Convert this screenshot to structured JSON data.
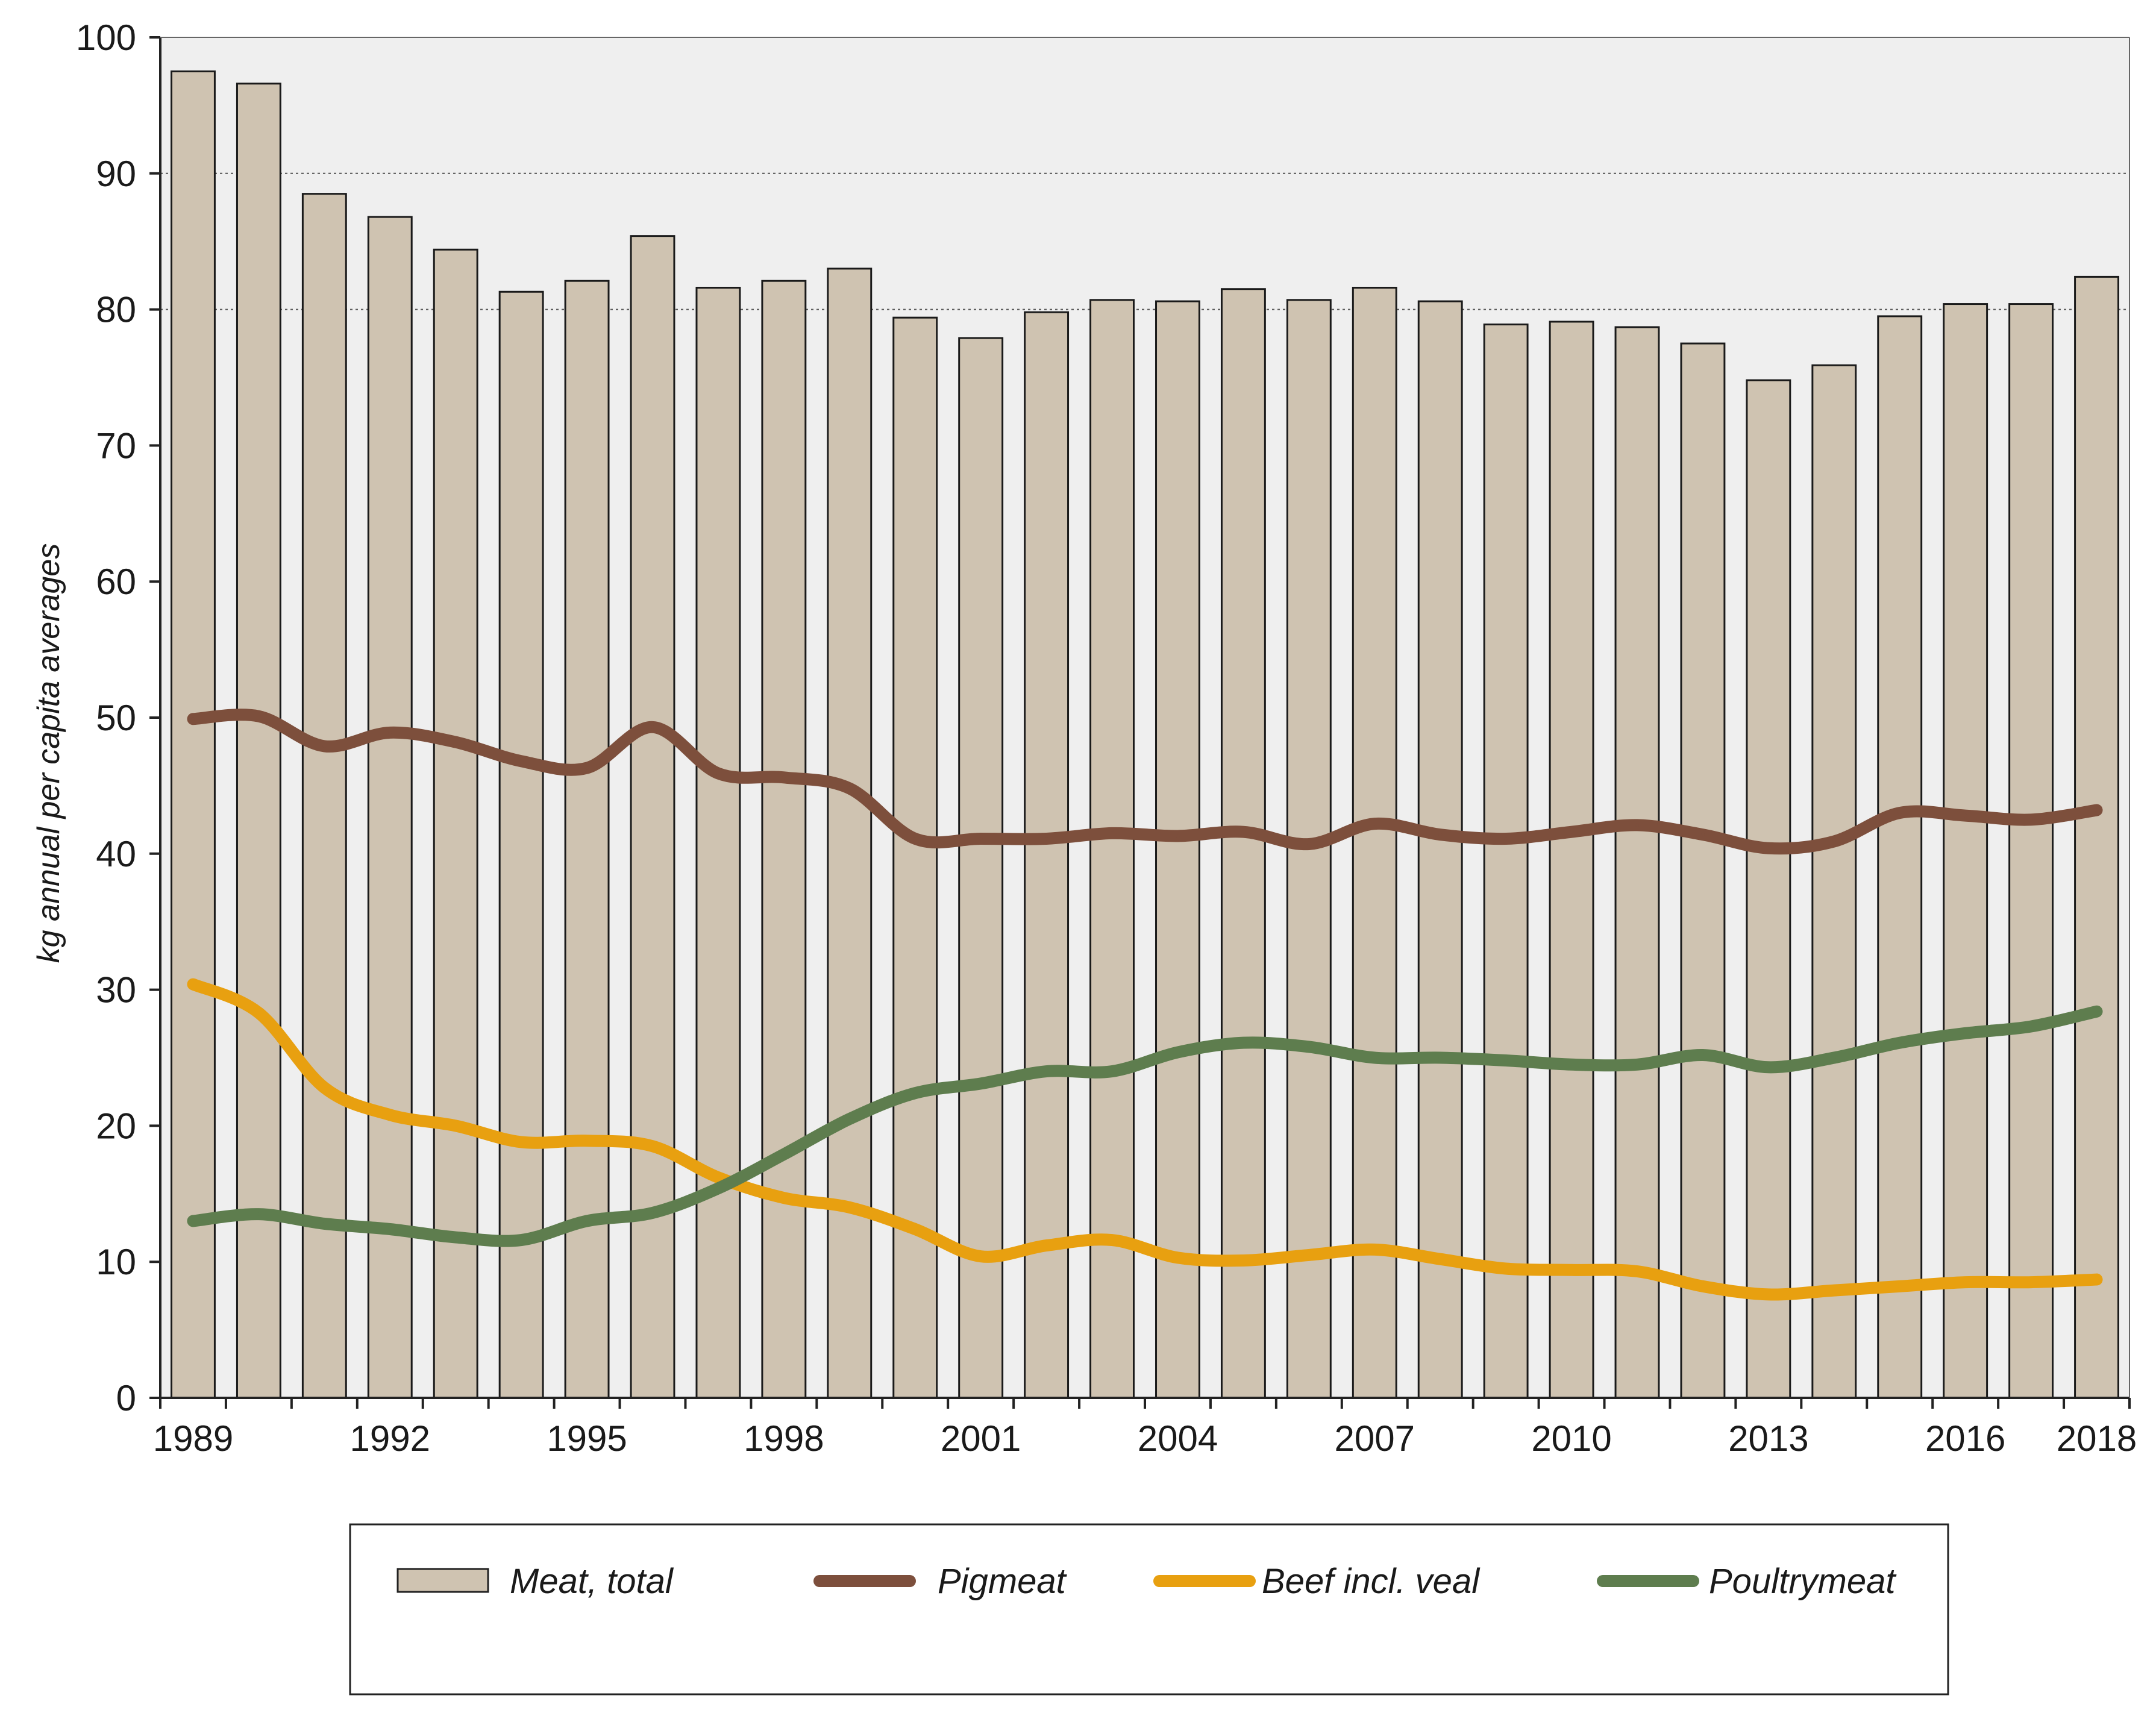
{
  "chart_data": {
    "type": "bar",
    "title": "",
    "xlabel": "",
    "ylabel": "kg annual per capita averages",
    "ylim": [
      0,
      100
    ],
    "yticks": [
      0,
      10,
      20,
      30,
      40,
      50,
      60,
      70,
      80,
      90,
      100
    ],
    "x_tick_labels": [
      "1989",
      "1992",
      "1995",
      "1998",
      "2001",
      "2004",
      "2007",
      "2010",
      "2013",
      "2016",
      "2018"
    ],
    "x": [
      1989,
      1990,
      1991,
      1992,
      1993,
      1994,
      1995,
      1996,
      1997,
      1998,
      1999,
      2000,
      2001,
      2002,
      2003,
      2004,
      2005,
      2006,
      2007,
      2008,
      2009,
      2010,
      2011,
      2012,
      2013,
      2014,
      2015,
      2016,
      2017,
      2018
    ],
    "grid": "horizontal dotted at 80 and 90",
    "legend_position": "bottom",
    "series": [
      {
        "name": "Meat, total",
        "kind": "bar",
        "color": "#cfc3b1",
        "values": [
          97.5,
          96.6,
          88.5,
          86.8,
          84.4,
          81.3,
          82.1,
          85.4,
          81.6,
          82.1,
          83.0,
          79.4,
          77.9,
          79.8,
          80.7,
          80.6,
          81.5,
          80.7,
          81.6,
          80.6,
          78.9,
          79.1,
          78.7,
          77.5,
          74.8,
          75.9,
          79.5,
          80.4,
          80.4,
          82.4
        ]
      },
      {
        "name": "Pigmeat",
        "kind": "line",
        "color": "#7d4f3c",
        "values": [
          49.9,
          50.1,
          47.9,
          48.9,
          48.2,
          46.8,
          46.3,
          49.3,
          45.9,
          45.6,
          44.8,
          41.1,
          41.1,
          41.1,
          41.5,
          41.3,
          41.6,
          40.7,
          42.2,
          41.4,
          41.1,
          41.6,
          42.1,
          41.4,
          40.4,
          40.9,
          43.0,
          42.8,
          42.5,
          43.2
        ]
      },
      {
        "name": "Beef incl. veal",
        "kind": "line",
        "color": "#e8a010",
        "values": [
          30.4,
          28.3,
          22.8,
          20.8,
          20.0,
          18.8,
          18.9,
          18.5,
          16.2,
          14.7,
          14.0,
          12.4,
          10.4,
          11.2,
          11.6,
          10.3,
          10.1,
          10.5,
          10.9,
          10.2,
          9.5,
          9.4,
          9.3,
          8.2,
          7.6,
          7.9,
          8.2,
          8.5,
          8.5,
          8.7
        ]
      },
      {
        "name": "Poultrymeat",
        "kind": "line",
        "color": "#5e7d4e",
        "values": [
          13.0,
          13.5,
          12.8,
          12.4,
          11.8,
          11.6,
          13.0,
          13.6,
          15.4,
          17.9,
          20.5,
          22.4,
          23.1,
          24.0,
          24.0,
          25.4,
          26.1,
          25.8,
          25.0,
          25.0,
          24.8,
          24.5,
          24.5,
          25.2,
          24.3,
          25.0,
          26.1,
          26.8,
          27.3,
          28.4
        ]
      }
    ]
  },
  "legend": {
    "items": [
      {
        "label": "Meat, total",
        "symbol": "bar",
        "color": "#cfc3b1"
      },
      {
        "label": "Pigmeat",
        "symbol": "line",
        "color": "#7d4f3c"
      },
      {
        "label": "Beef incl. veal",
        "symbol": "line",
        "color": "#e8a010"
      },
      {
        "label": "Poultrymeat",
        "symbol": "line",
        "color": "#5e7d4e"
      }
    ]
  }
}
